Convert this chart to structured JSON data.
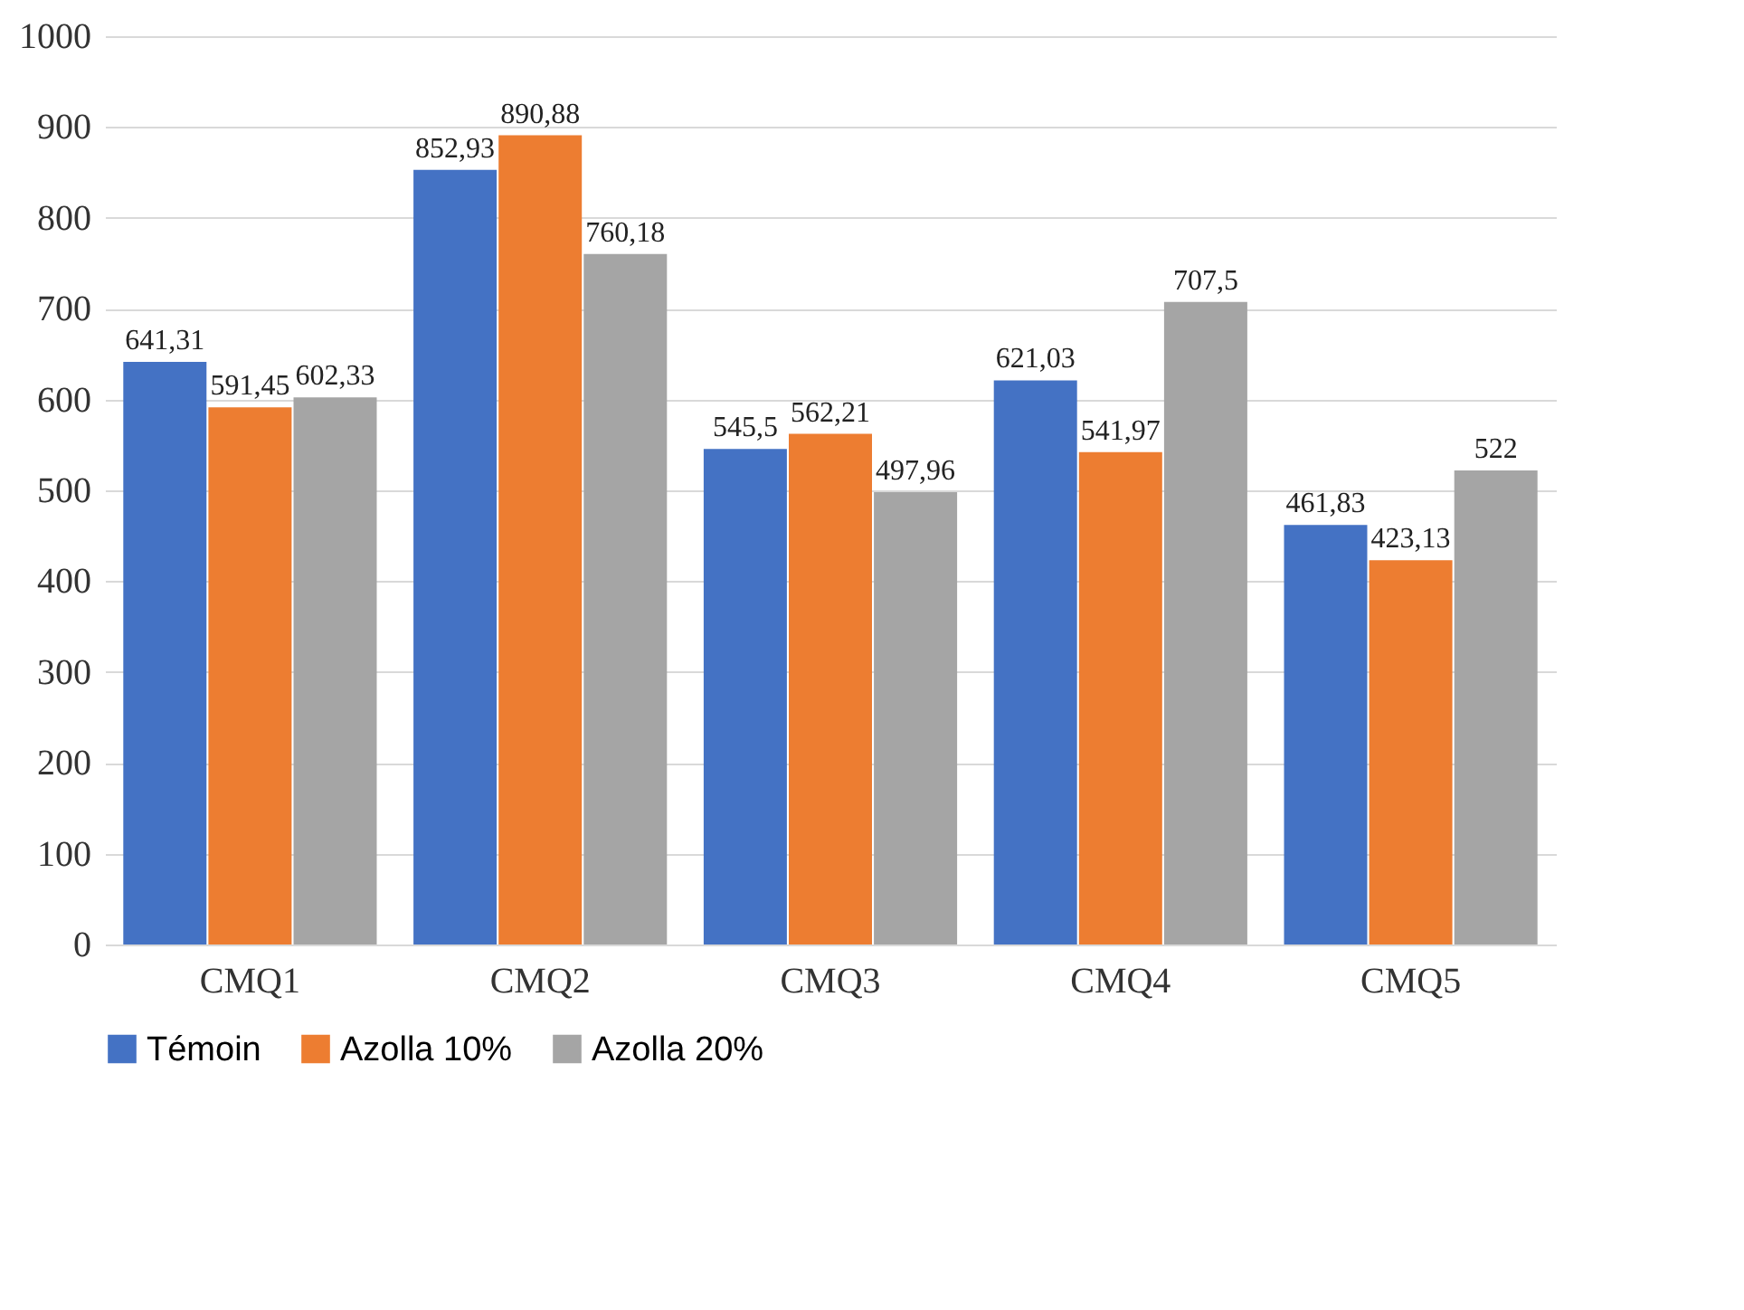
{
  "chart_data": {
    "type": "bar",
    "categories": [
      "CMQ1",
      "CMQ2",
      "CMQ3",
      "CMQ4",
      "CMQ5"
    ],
    "series": [
      {
        "name": "Témoin",
        "color": "#4472c4",
        "values": [
          641.31,
          852.93,
          545.5,
          621.03,
          461.83
        ],
        "value_labels": [
          "641,31",
          "852,93",
          "545,5",
          "621,03",
          "461,83"
        ]
      },
      {
        "name": "Azolla 10%",
        "color": "#ed7d31",
        "values": [
          591.45,
          890.88,
          562.21,
          541.97,
          423.13
        ],
        "value_labels": [
          "591,45",
          "890,88",
          "562,21",
          "541,97",
          "423,13"
        ]
      },
      {
        "name": "Azolla 20%",
        "color": "#a5a5a5",
        "values": [
          602.33,
          760.18,
          497.96,
          707.5,
          522
        ],
        "value_labels": [
          "602,33",
          "760,18",
          "497,96",
          "707,5",
          "522"
        ]
      }
    ],
    "ylim": [
      0,
      1000
    ],
    "yticks": [
      0,
      100,
      200,
      300,
      400,
      500,
      600,
      700,
      800,
      900,
      1000
    ],
    "grid": "y",
    "legend": "bottom"
  }
}
